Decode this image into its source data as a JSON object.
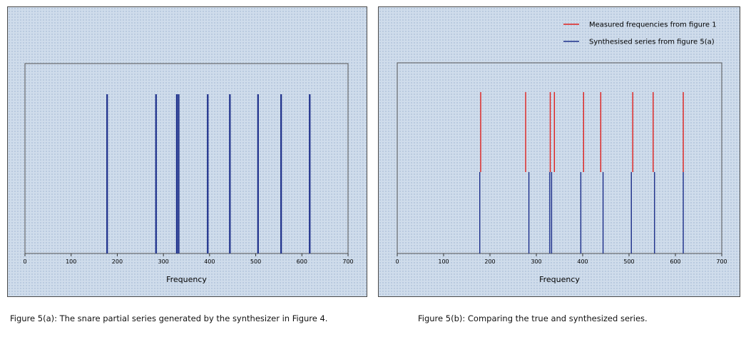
{
  "chart_data": [
    {
      "type": "bar",
      "xlabel": "Frequency",
      "xlim": [
        0,
        700
      ],
      "xticks": [
        0,
        100,
        200,
        300,
        400,
        500,
        600,
        700
      ],
      "series": [
        {
          "values": [
            178,
            284,
            329,
            333,
            396,
            444,
            505,
            555,
            617
          ],
          "color": "#1c2e8a"
        }
      ],
      "caption": "Figure 5(a): The snare partial series generated by the synthesizer in Figure 4."
    },
    {
      "type": "bar",
      "xlabel": "Frequency",
      "xlim": [
        0,
        700
      ],
      "xticks": [
        0,
        100,
        200,
        300,
        400,
        500,
        600,
        700
      ],
      "legend_position": "top-right",
      "series": [
        {
          "name": "Measured frequencies from figure 1",
          "values": [
            180,
            277,
            330,
            339,
            402,
            439,
            508,
            552,
            617
          ],
          "color": "#e0201c"
        },
        {
          "name": "Synthesised series from figure 5(a)",
          "values": [
            178,
            284,
            329,
            333,
            396,
            444,
            505,
            555,
            617
          ],
          "color": "#1c2e8a"
        }
      ],
      "caption": "Figure 5(b): Comparing the true and synthesized series."
    }
  ]
}
